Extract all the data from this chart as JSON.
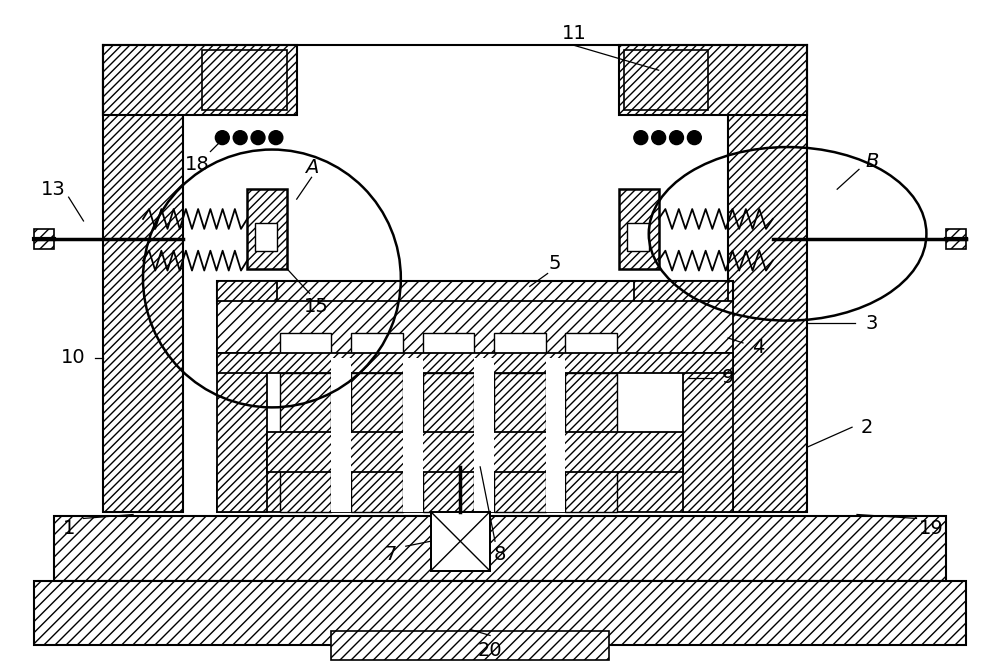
{
  "bg_color": "#ffffff",
  "line_color": "#000000",
  "fig_width": 10.0,
  "fig_height": 6.68,
  "dpi": 100
}
